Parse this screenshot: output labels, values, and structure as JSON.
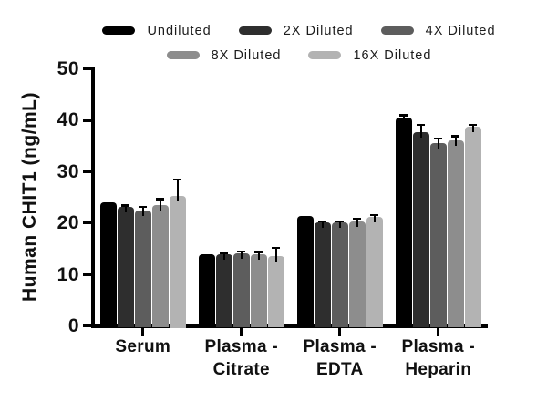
{
  "chart_data": {
    "type": "bar",
    "title": "",
    "ylabel": "Human CHIT1 (ng/mL)",
    "xlabel": "",
    "ylim": [
      0,
      50
    ],
    "yticks": [
      0,
      10,
      20,
      30,
      40,
      50
    ],
    "grid": "off",
    "legend_position": "top, two centered rows (3 + 2)",
    "categories": [
      "Serum",
      "Plasma - Citrate",
      "Plasma - EDTA",
      "Plasma - Heparin"
    ],
    "category_label_lines": [
      [
        "Serum"
      ],
      [
        "Plasma -",
        "Citrate"
      ],
      [
        "Plasma -",
        "EDTA"
      ],
      [
        "Plasma -",
        "Heparin"
      ]
    ],
    "series": [
      {
        "name": "Undiluted",
        "color": "#000000",
        "values": [
          23.7,
          13.6,
          21.1,
          40.2
        ],
        "errors_upper": [
          0,
          0,
          0,
          0.5
        ]
      },
      {
        "name": "2X Diluted",
        "color": "#2e2e2e",
        "values": [
          22.9,
          13.7,
          19.9,
          37.4
        ],
        "errors_upper": [
          0.3,
          0.3,
          0.2,
          1.5
        ]
      },
      {
        "name": "4X Diluted",
        "color": "#5d5d5d",
        "values": [
          22.1,
          13.8,
          19.8,
          35.2
        ],
        "errors_upper": [
          0.8,
          0.4,
          0.3,
          1.0
        ]
      },
      {
        "name": "8X Diluted",
        "color": "#8d8d8d",
        "values": [
          23.3,
          13.7,
          20.1,
          35.8
        ],
        "errors_upper": [
          1.1,
          0.4,
          0.5,
          0.9
        ]
      },
      {
        "name": "16X Diluted",
        "color": "#b3b3b3",
        "values": [
          25.0,
          13.3,
          20.9,
          38.5
        ],
        "errors_upper": [
          3.2,
          1.6,
          0.4,
          0.4
        ]
      }
    ],
    "legend_rows": [
      [
        0,
        1,
        2
      ],
      [
        3,
        4
      ]
    ],
    "error_bar_color": "#000000",
    "axis_color": "#000000"
  }
}
